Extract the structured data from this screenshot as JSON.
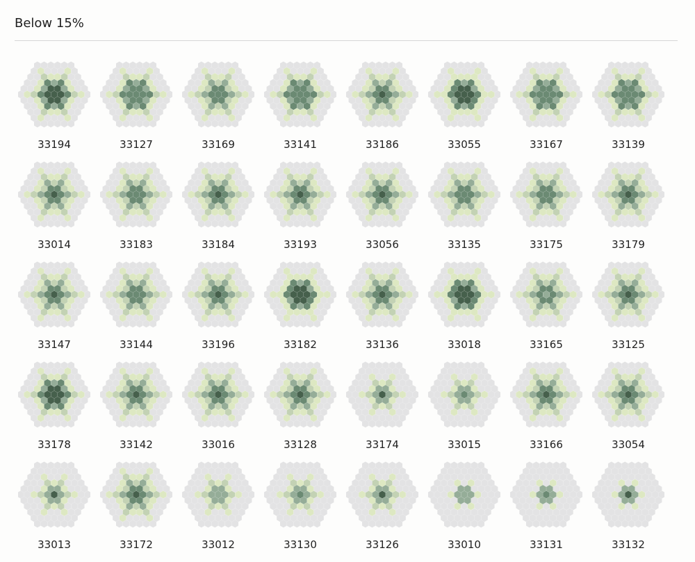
{
  "section": {
    "title": "Below 15%"
  },
  "palette": {
    "ring": "#e3e3e4",
    "light": "#dde8c2",
    "pale": "#c3d2b4",
    "mid": "#95ad98",
    "dark": "#6b8a73",
    "darker": "#46604c"
  },
  "items": [
    {
      "id": "33194",
      "core": "darker",
      "pattern": "dense"
    },
    {
      "id": "33127",
      "core": "dark",
      "pattern": "dense"
    },
    {
      "id": "33169",
      "core": "dark",
      "pattern": "star"
    },
    {
      "id": "33141",
      "core": "dark",
      "pattern": "dense"
    },
    {
      "id": "33186",
      "core": "darker",
      "pattern": "star"
    },
    {
      "id": "33055",
      "core": "darker",
      "pattern": "tri"
    },
    {
      "id": "33167",
      "core": "dark",
      "pattern": "dense"
    },
    {
      "id": "33139",
      "core": "dark",
      "pattern": "dense"
    },
    {
      "id": "33014",
      "core": "darker",
      "pattern": "star"
    },
    {
      "id": "33183",
      "core": "dark",
      "pattern": "star"
    },
    {
      "id": "33184",
      "core": "darker",
      "pattern": "star"
    },
    {
      "id": "33193",
      "core": "darker",
      "pattern": "star"
    },
    {
      "id": "33056",
      "core": "darker",
      "pattern": "star"
    },
    {
      "id": "33135",
      "core": "dark",
      "pattern": "star"
    },
    {
      "id": "33175",
      "core": "dark",
      "pattern": "star"
    },
    {
      "id": "33179",
      "core": "darker",
      "pattern": "star"
    },
    {
      "id": "33147",
      "core": "darker",
      "pattern": "star"
    },
    {
      "id": "33144",
      "core": "dark",
      "pattern": "star"
    },
    {
      "id": "33196",
      "core": "darker",
      "pattern": "star"
    },
    {
      "id": "33182",
      "core": "darker",
      "pattern": "tri"
    },
    {
      "id": "33136",
      "core": "darker",
      "pattern": "star"
    },
    {
      "id": "33018",
      "core": "darker",
      "pattern": "tri"
    },
    {
      "id": "33165",
      "core": "mid",
      "pattern": "star"
    },
    {
      "id": "33125",
      "core": "darker",
      "pattern": "star"
    },
    {
      "id": "33178",
      "core": "darker",
      "pattern": "dense"
    },
    {
      "id": "33142",
      "core": "darker",
      "pattern": "star"
    },
    {
      "id": "33016",
      "core": "darker",
      "pattern": "star"
    },
    {
      "id": "33128",
      "core": "darker",
      "pattern": "star"
    },
    {
      "id": "33174",
      "core": "darker",
      "pattern": "small"
    },
    {
      "id": "33015",
      "core": "dark",
      "pattern": "small"
    },
    {
      "id": "33166",
      "core": "darker",
      "pattern": "star"
    },
    {
      "id": "33054",
      "core": "darker",
      "pattern": "star"
    },
    {
      "id": "33013",
      "core": "darker",
      "pattern": "small"
    },
    {
      "id": "33172",
      "core": "darker",
      "pattern": "star"
    },
    {
      "id": "33012",
      "core": "mid",
      "pattern": "small"
    },
    {
      "id": "33130",
      "core": "dark",
      "pattern": "small"
    },
    {
      "id": "33126",
      "core": "darker",
      "pattern": "small"
    },
    {
      "id": "33010",
      "core": "mid",
      "pattern": "tiny"
    },
    {
      "id": "33131",
      "core": "dark",
      "pattern": "tiny"
    },
    {
      "id": "33132",
      "core": "darker",
      "pattern": "tiny"
    }
  ]
}
